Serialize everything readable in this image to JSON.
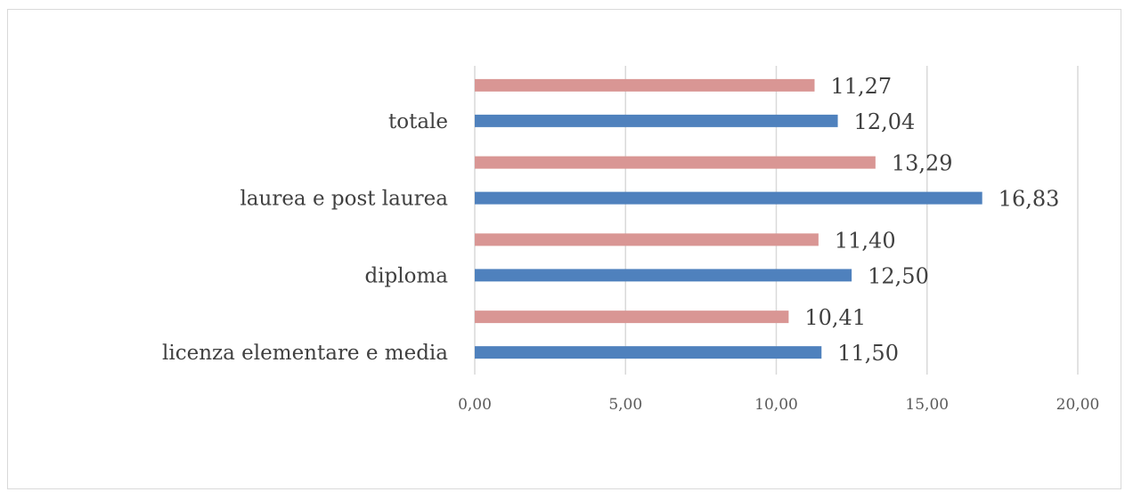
{
  "chart_data": {
    "type": "bar",
    "orientation": "horizontal",
    "categories": [
      "licenza elementare e media",
      "diploma",
      "laurea e post laurea",
      "totale"
    ],
    "series": [
      {
        "color": "#4f81bd",
        "values": [
          11.5,
          12.5,
          16.83,
          12.04
        ],
        "value_labels": [
          "11,50",
          "12,50",
          "16,83",
          "12,04"
        ]
      },
      {
        "color": "#d99694",
        "values": [
          10.41,
          11.4,
          13.29,
          11.27
        ],
        "value_labels": [
          "10,41",
          "11,40",
          "13,29",
          "11,27"
        ]
      }
    ],
    "xlim": [
      0,
      20
    ],
    "x_ticks": [
      0,
      5,
      10,
      15,
      20
    ],
    "x_tick_labels": [
      "0,00",
      "5,00",
      "10,00",
      "15,00",
      "20,00"
    ],
    "grid": true,
    "legend": "none"
  }
}
